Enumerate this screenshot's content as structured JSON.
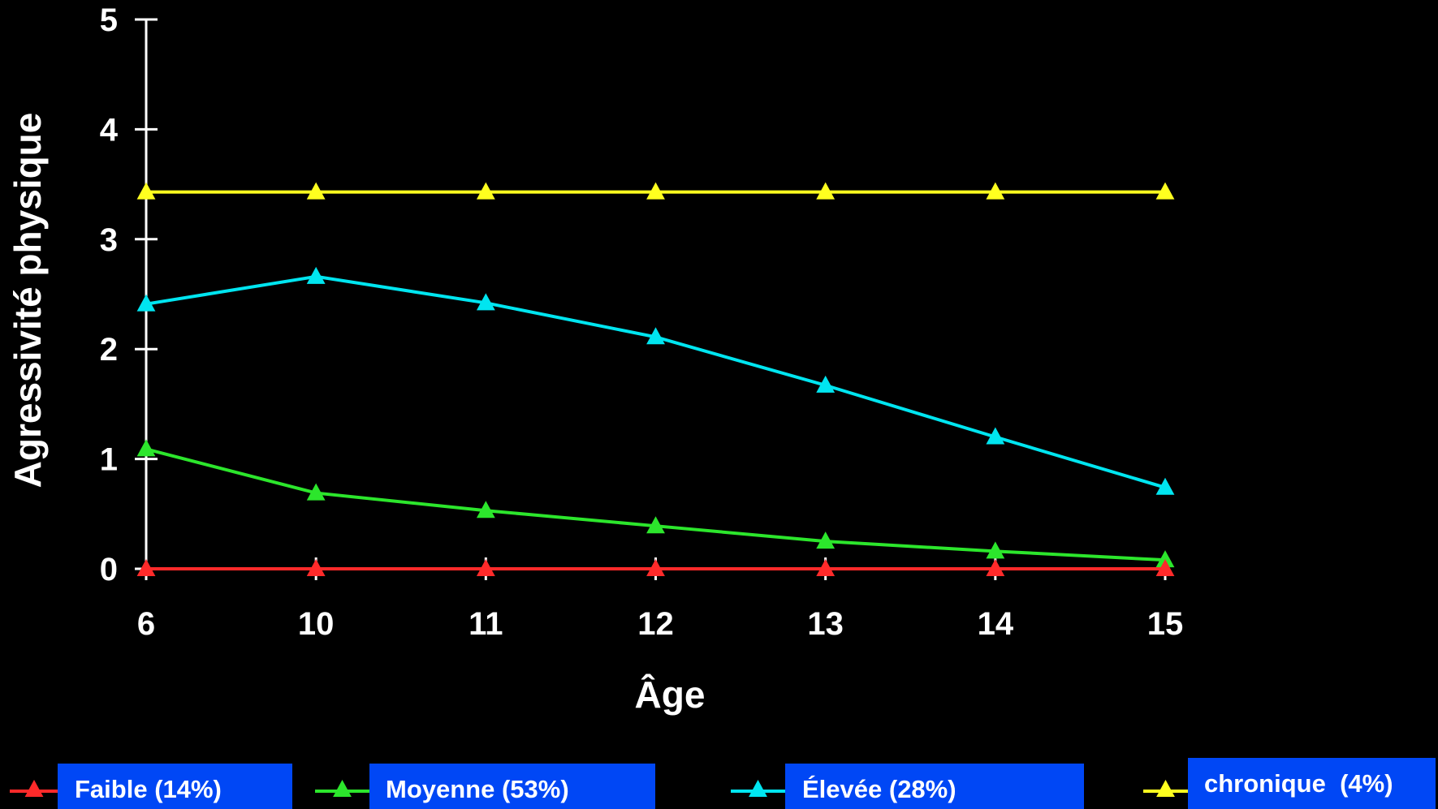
{
  "chart_data": {
    "type": "line",
    "title": "",
    "xlabel": "Âge",
    "ylabel": "Agressivité physique",
    "categories": [
      "6",
      "10",
      "11",
      "12",
      "13",
      "14",
      "15"
    ],
    "ylim": [
      0,
      5
    ],
    "yticks": [
      "0",
      "1",
      "2",
      "3",
      "4",
      "5"
    ],
    "grid": false,
    "legend_position": "bottom",
    "series": [
      {
        "name": "Faible (14%)",
        "color": "#ff2a2a",
        "marker": "triangle",
        "values": [
          0,
          0,
          0,
          0,
          0,
          0,
          0
        ]
      },
      {
        "name": "Moyenne (53%)",
        "color": "#2ce62c",
        "marker": "triangle",
        "values": [
          1.09,
          0.69,
          0.53,
          0.39,
          0.25,
          0.16,
          0.08
        ]
      },
      {
        "name": "Élevée (28%)",
        "color": "#00e5f0",
        "marker": "triangle",
        "values": [
          2.41,
          2.66,
          2.42,
          2.11,
          1.67,
          1.2,
          0.74
        ]
      },
      {
        "name": "chronique  (4%)",
        "color": "#ffff1f",
        "marker": "triangle",
        "values": [
          3.43,
          3.43,
          3.43,
          3.43,
          3.43,
          3.43,
          3.43
        ]
      }
    ],
    "legend_box_color": "#0047f5"
  }
}
